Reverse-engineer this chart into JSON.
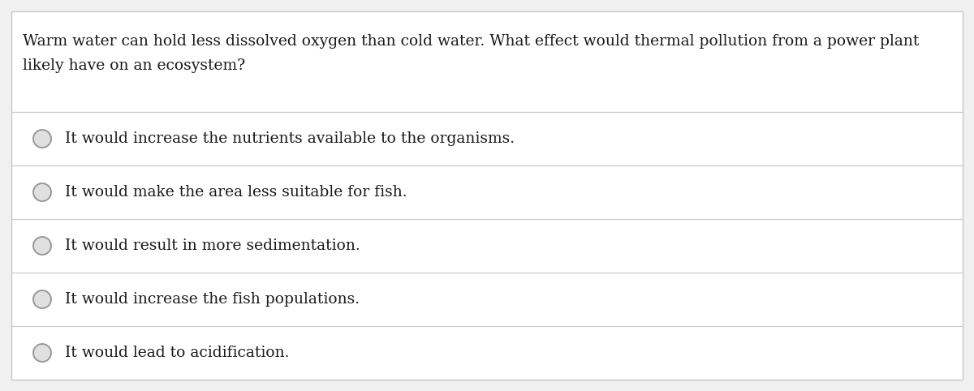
{
  "question_line1": "Warm water can hold less dissolved oxygen than cold water. What effect would thermal pollution from a power plant",
  "question_line2": "likely have on an ecosystem?",
  "options": [
    "It would increase the nutrients available to the organisms.",
    "It would make the area less suitable for fish.",
    "It would result in more sedimentation.",
    "It would increase the fish populations.",
    "It would lead to acidification."
  ],
  "bg_color": "#f0f0f0",
  "card_color": "#ffffff",
  "border_color": "#c8c8c8",
  "text_color": "#1a1a1a",
  "line_color": "#cccccc",
  "circle_edge_color": "#999999",
  "circle_fill_color": "#e0e0e0",
  "font_size_question": 13.5,
  "font_size_options": 13.5
}
